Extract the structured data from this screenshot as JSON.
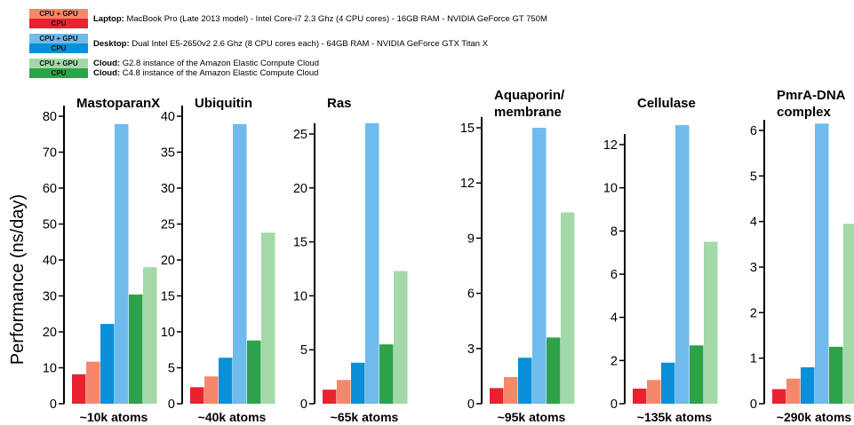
{
  "legend": {
    "items": [
      {
        "swatch_top": "CPU + GPU",
        "swatch_bottom": "CPU",
        "color_top": "#f5876a",
        "color_bottom": "#e8232f",
        "name": "Laptop:",
        "desc": "MacBook Pro (Late 2013 model) - Intel Core-i7 2.3 Ghz (4 CPU cores) - 16GB RAM - NVIDIA GeForce GT 750M"
      },
      {
        "swatch_top": "CPU + GPU",
        "swatch_bottom": "CPU",
        "color_top": "#6ebbec",
        "color_bottom": "#0a8fd8",
        "name": "Desktop:",
        "desc": "Dual Intel E5-2650v2 2.6 Ghz (8 CPU cores each) - 64GB RAM - NVIDIA GeForce GTX Titan X"
      },
      {
        "swatch_top": "CPU + GPU",
        "swatch_bottom": "CPU",
        "color_top": "#a3d9a8",
        "color_bottom": "#2ea24a",
        "name": "Cloud:",
        "desc": "G2.8 instance of the Amazon Elastic Compute Cloud",
        "name2": "Cloud:",
        "desc2": "C4.8 instance of the Amazon Elastic Compute Cloud"
      }
    ]
  },
  "ylabel": "Performance (ns/day)",
  "colors": {
    "laptop_cpu": "#e8232f",
    "laptop_cpu_gpu": "#f5876a",
    "desktop_cpu": "#0a8fd8",
    "desktop_cpu_gpu": "#6ebbec",
    "cloud_cpu": "#2ea24a",
    "cloud_cpu_gpu": "#a3d9a8"
  },
  "chart_data": [
    {
      "type": "bar",
      "title": [
        "MastoparanX"
      ],
      "xlabel": "~10k atoms",
      "categories": [
        "Laptop CPU",
        "Laptop CPU + GPU",
        "Desktop CPU",
        "Desktop CPU + GPU",
        "Cloud CPU",
        "Cloud CPU + GPU"
      ],
      "values": [
        8.2,
        11.7,
        22.2,
        77.8,
        30.4,
        38.0
      ],
      "ylim": [
        0,
        80
      ],
      "yticks": [
        0,
        10,
        20,
        30,
        40,
        50,
        60,
        70,
        80
      ]
    },
    {
      "type": "bar",
      "title": [
        "Ubiquitin"
      ],
      "xlabel": "~40k atoms",
      "categories": [
        "Laptop CPU",
        "Laptop CPU + GPU",
        "Desktop CPU",
        "Desktop CPU + GPU",
        "Cloud CPU",
        "Cloud CPU + GPU"
      ],
      "values": [
        2.3,
        3.8,
        6.4,
        38.9,
        8.8,
        23.8
      ],
      "ylim": [
        0,
        40
      ],
      "yticks": [
        0,
        5,
        10,
        15,
        20,
        25,
        30,
        35,
        40
      ]
    },
    {
      "type": "bar",
      "title": [
        "Ras"
      ],
      "xlabel": "~65k atoms",
      "categories": [
        "Laptop CPU",
        "Laptop CPU + GPU",
        "Desktop CPU",
        "Desktop CPU + GPU",
        "Cloud CPU",
        "Cloud CPU + GPU"
      ],
      "values": [
        1.3,
        2.2,
        3.8,
        26.0,
        5.5,
        12.3
      ],
      "ylim": [
        0,
        25
      ],
      "yticks": [
        0,
        5,
        10,
        15,
        20,
        25
      ]
    },
    {
      "type": "bar",
      "title": [
        "Aquaporin/",
        "membrane"
      ],
      "xlabel": "~95k atoms",
      "categories": [
        "Laptop CPU",
        "Laptop CPU + GPU",
        "Desktop CPU",
        "Desktop CPU + GPU",
        "Cloud CPU",
        "Cloud CPU + GPU"
      ],
      "values": [
        0.85,
        1.45,
        2.5,
        15.0,
        3.6,
        10.4
      ],
      "ylim": [
        0,
        15
      ],
      "yticks": [
        0,
        3,
        6,
        9,
        12,
        15
      ]
    },
    {
      "type": "bar",
      "title": [
        "Cellulase"
      ],
      "xlabel": "~135k atoms",
      "categories": [
        "Laptop CPU",
        "Laptop CPU + GPU",
        "Desktop CPU",
        "Desktop CPU + GPU",
        "Cloud CPU",
        "Cloud CPU + GPU"
      ],
      "values": [
        0.7,
        1.1,
        1.9,
        12.9,
        2.7,
        7.5
      ],
      "ylim": [
        0,
        12
      ],
      "yticks": [
        0,
        2,
        4,
        6,
        8,
        10,
        12
      ]
    },
    {
      "type": "bar",
      "title": [
        "PmrA-DNA",
        "complex"
      ],
      "xlabel": "~290k atoms",
      "categories": [
        "Laptop CPU",
        "Laptop CPU + GPU",
        "Desktop CPU",
        "Desktop CPU + GPU",
        "Cloud CPU",
        "Cloud CPU + GPU"
      ],
      "values": [
        0.32,
        0.55,
        0.8,
        6.15,
        1.25,
        3.95
      ],
      "ylim": [
        0,
        6
      ],
      "yticks": [
        0,
        1,
        2,
        3,
        4,
        5,
        6
      ]
    }
  ]
}
